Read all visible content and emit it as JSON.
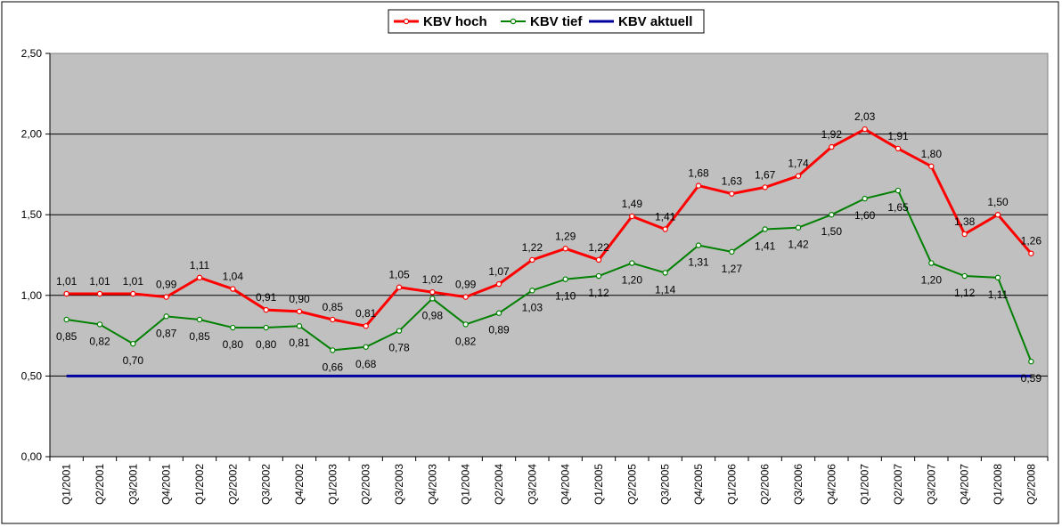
{
  "chart_data": {
    "type": "line",
    "categories": [
      "Q1/2001",
      "Q2/2001",
      "Q3/2001",
      "Q4/2001",
      "Q1/2002",
      "Q2/2002",
      "Q3/2002",
      "Q4/2002",
      "Q1/2003",
      "Q2/2003",
      "Q3/2003",
      "Q4/2003",
      "Q1/2004",
      "Q2/2004",
      "Q3/2004",
      "Q4/2004",
      "Q1/2005",
      "Q2/2005",
      "Q3/2005",
      "Q4/2005",
      "Q1/2006",
      "Q2/2006",
      "Q3/2006",
      "Q4/2006",
      "Q1/2007",
      "Q2/2007",
      "Q3/2007",
      "Q4/2007",
      "Q1/2008",
      "Q2/2008"
    ],
    "series": [
      {
        "name": "KBV hoch",
        "color": "#ff0000",
        "values": [
          1.01,
          1.01,
          1.01,
          0.99,
          1.11,
          1.04,
          0.91,
          0.9,
          0.85,
          0.81,
          1.05,
          1.02,
          0.99,
          1.07,
          1.22,
          1.29,
          1.22,
          1.49,
          1.41,
          1.68,
          1.63,
          1.67,
          1.74,
          1.92,
          2.03,
          1.91,
          1.8,
          1.38,
          1.5,
          1.26
        ],
        "labels": [
          "1,01",
          "1,01",
          "1,01",
          "0,99",
          "1,11",
          "1,04",
          "0,91",
          "0,90",
          "0,85",
          "0,81",
          "1,05",
          "1,02",
          "0,99",
          "1,07",
          "1,22",
          "1,29",
          "1,22",
          "1,49",
          "1,41",
          "1,68",
          "1,63",
          "1,67",
          "1,74",
          "1,92",
          "2,03",
          "1,91",
          "1,80",
          "1,38",
          "1,50",
          "1,26"
        ]
      },
      {
        "name": "KBV tief",
        "color": "#008000",
        "values": [
          0.85,
          0.82,
          0.7,
          0.87,
          0.85,
          0.8,
          0.8,
          0.81,
          0.66,
          0.68,
          0.78,
          0.98,
          0.82,
          0.89,
          1.03,
          1.1,
          1.12,
          1.2,
          1.14,
          1.31,
          1.27,
          1.41,
          1.42,
          1.5,
          1.6,
          1.65,
          1.2,
          1.12,
          1.11,
          0.59
        ],
        "labels": [
          "0,85",
          "0,82",
          "0,70",
          "0,87",
          "0,85",
          "0,80",
          "0,80",
          "0,81",
          "0,66",
          "0,68",
          "0,78",
          "0,98",
          "0,82",
          "0,89",
          "1,03",
          "1,10",
          "1,12",
          "1,20",
          "1,14",
          "1,31",
          "1,27",
          "1,41",
          "1,42",
          "1,50",
          "1,60",
          "1,65",
          "1,20",
          "1,12",
          "1,11",
          "0,59"
        ]
      },
      {
        "name": "KBV aktuell",
        "color": "#0000a0",
        "values": [
          0.5,
          0.5,
          0.5,
          0.5,
          0.5,
          0.5,
          0.5,
          0.5,
          0.5,
          0.5,
          0.5,
          0.5,
          0.5,
          0.5,
          0.5,
          0.5,
          0.5,
          0.5,
          0.5,
          0.5,
          0.5,
          0.5,
          0.5,
          0.5,
          0.5,
          0.5,
          0.5,
          0.5,
          0.5,
          0.5
        ]
      }
    ],
    "yticks": [
      "0,00",
      "0,50",
      "1,00",
      "1,50",
      "2,00",
      "2,50"
    ],
    "ylim": [
      0,
      2.5
    ],
    "grid": true,
    "legend_position": "top-center",
    "plot_background": "#c0c0c0"
  }
}
